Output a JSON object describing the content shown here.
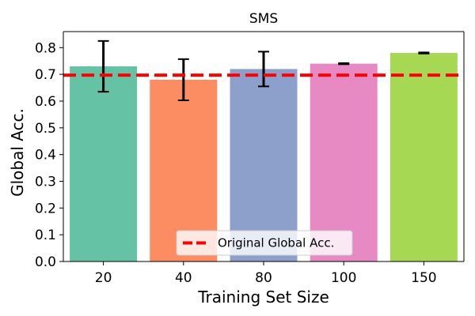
{
  "chart_data": {
    "type": "bar",
    "title": "SMS",
    "xlabel": "Training Set Size",
    "ylabel": "Global Acc.",
    "categories": [
      "20",
      "40",
      "80",
      "100",
      "150"
    ],
    "values": [
      0.73,
      0.68,
      0.72,
      0.74,
      0.78
    ],
    "errors": [
      0.095,
      0.077,
      0.065,
      0.002,
      0.002
    ],
    "colors": [
      "#66c2a5",
      "#fc8d62",
      "#8da0cb",
      "#e78ac3",
      "#a6d854"
    ],
    "ylim": [
      0,
      0.86
    ],
    "yticks": [
      0.0,
      0.1,
      0.2,
      0.3,
      0.4,
      0.5,
      0.6,
      0.7,
      0.8
    ],
    "yticklabels": [
      "0.0",
      "0.1",
      "0.2",
      "0.3",
      "0.4",
      "0.5",
      "0.6",
      "0.7",
      "0.8"
    ],
    "reference_line": {
      "value": 0.697,
      "label": "Original Global Acc.",
      "color": "#ff0000",
      "style": "dashed"
    },
    "legend": {
      "placement": "lower-center",
      "entries": [
        "Original Global Acc."
      ]
    },
    "grid": false
  }
}
